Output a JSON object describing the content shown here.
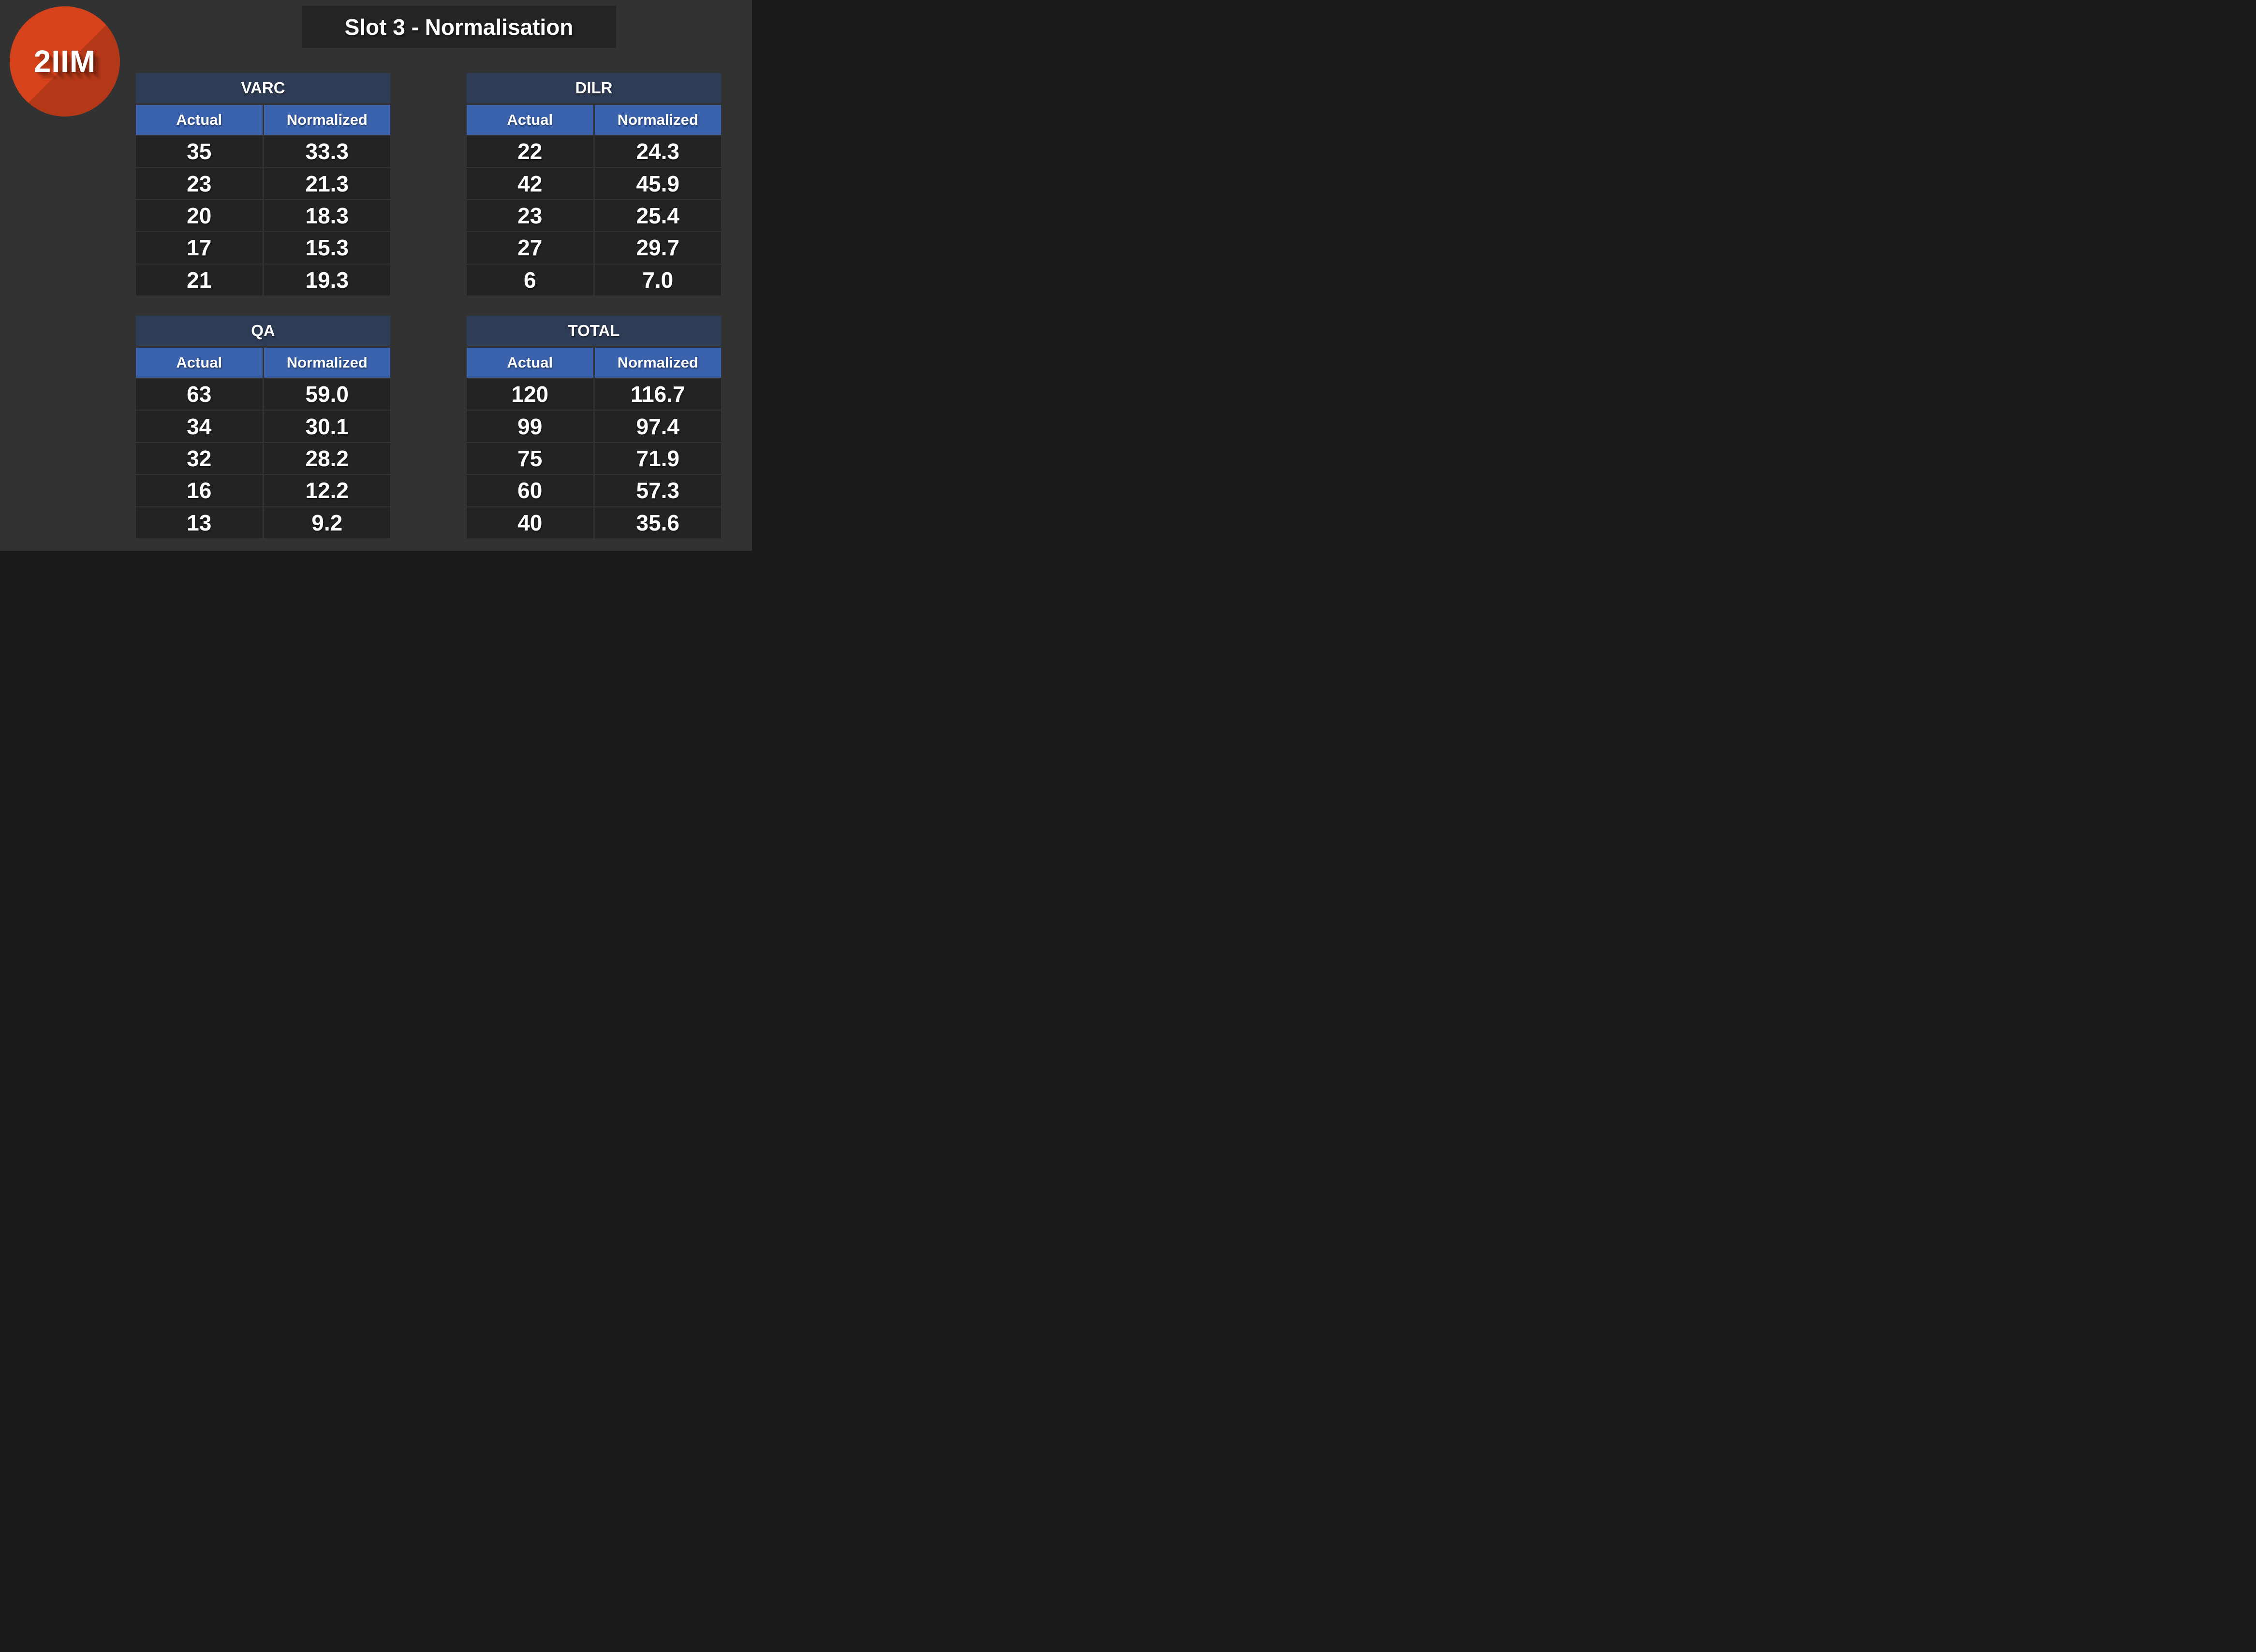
{
  "slide": {
    "title": "Slot 3 - Normalisation"
  },
  "logo": {
    "text": "2IIM"
  },
  "colors": {
    "page_bg": "#323232",
    "titlebar_bg": "#242424",
    "logo_red": "#d5421c",
    "table_title_navy": "#2f3c55",
    "column_header_blue": "#3a62ad",
    "cell_bg": "#232323",
    "text": "#ffffff"
  },
  "tables": {
    "varc": {
      "title": "VARC",
      "columns": [
        "Actual",
        "Normalized"
      ],
      "rows": [
        [
          "35",
          "33.3"
        ],
        [
          "23",
          "21.3"
        ],
        [
          "20",
          "18.3"
        ],
        [
          "17",
          "15.3"
        ],
        [
          "21",
          "19.3"
        ]
      ]
    },
    "dilr": {
      "title": "DILR",
      "columns": [
        "Actual",
        "Normalized"
      ],
      "rows": [
        [
          "22",
          "24.3"
        ],
        [
          "42",
          "45.9"
        ],
        [
          "23",
          "25.4"
        ],
        [
          "27",
          "29.7"
        ],
        [
          "6",
          "7.0"
        ]
      ]
    },
    "qa": {
      "title": "QA",
      "columns": [
        "Actual",
        "Normalized"
      ],
      "rows": [
        [
          "63",
          "59.0"
        ],
        [
          "34",
          "30.1"
        ],
        [
          "32",
          "28.2"
        ],
        [
          "16",
          "12.2"
        ],
        [
          "13",
          "9.2"
        ]
      ]
    },
    "total": {
      "title": "TOTAL",
      "columns": [
        "Actual",
        "Normalized"
      ],
      "rows": [
        [
          "120",
          "116.7"
        ],
        [
          "99",
          "97.4"
        ],
        [
          "75",
          "71.9"
        ],
        [
          "60",
          "57.3"
        ],
        [
          "40",
          "35.6"
        ]
      ]
    }
  }
}
